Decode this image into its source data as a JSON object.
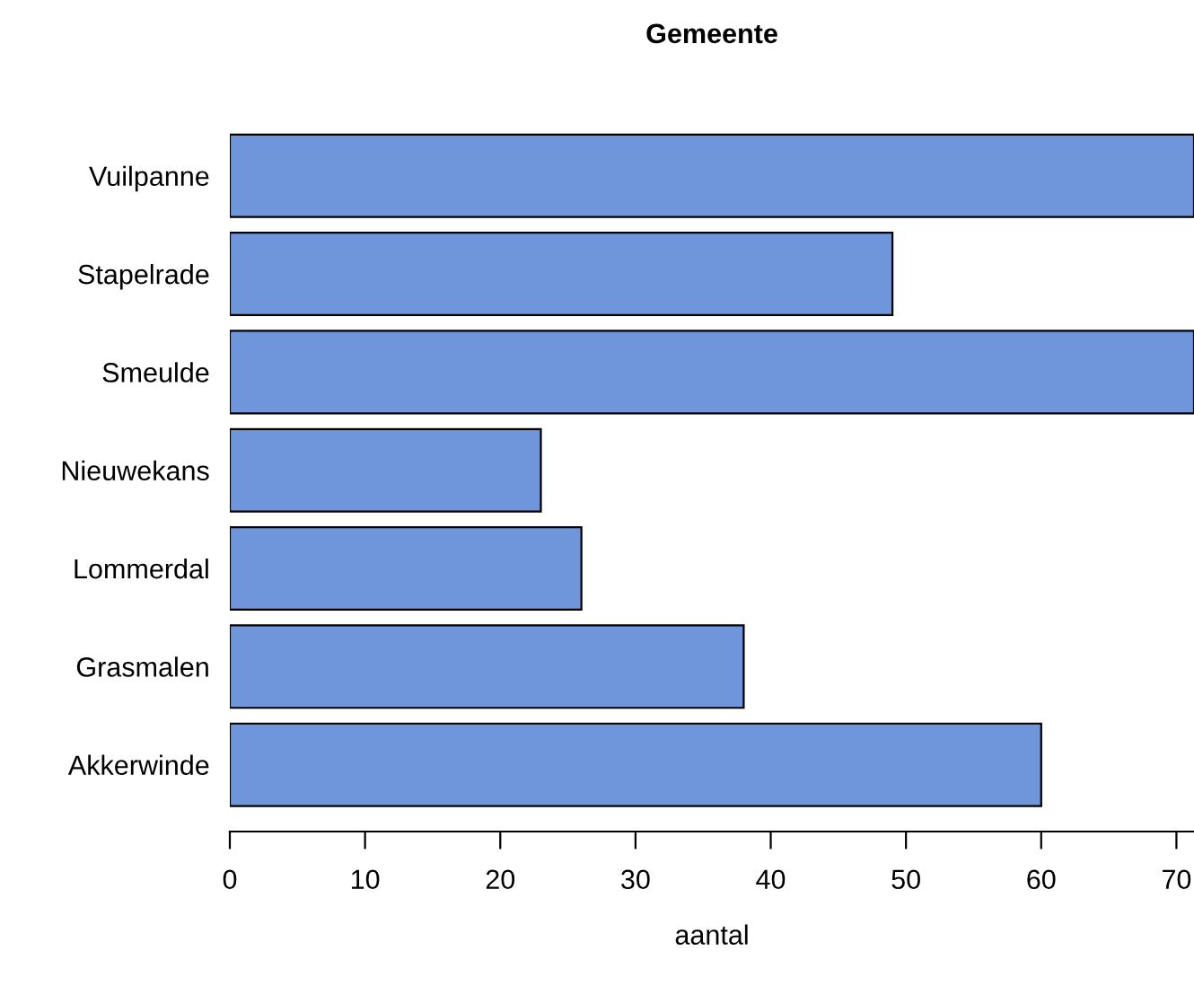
{
  "chart_data": {
    "type": "bar",
    "orientation": "horizontal",
    "title": "Gemeente",
    "xlabel": "aantal",
    "categories": [
      "Vuilpanne",
      "Stapelrade",
      "Smeulde",
      "Nieuwekans",
      "Lommerdal",
      "Grasmalen",
      "Akkerwinde"
    ],
    "values": [
      71.3,
      49,
      71.3,
      23,
      26,
      38,
      60
    ],
    "color": "#6f95db",
    "xlim": [
      0,
      71.3
    ],
    "xticks": [
      0,
      10,
      20,
      30,
      40,
      50,
      60,
      70
    ],
    "grid": false,
    "legend": false
  }
}
